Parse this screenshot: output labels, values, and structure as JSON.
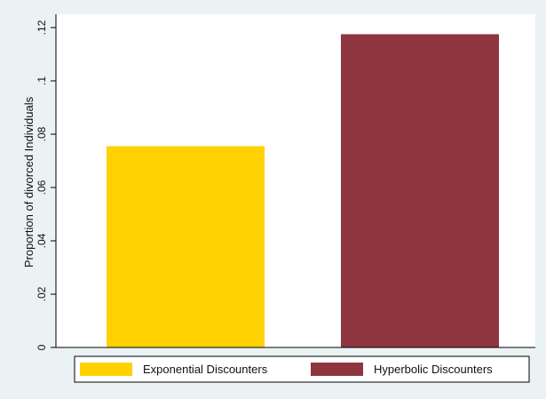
{
  "chart_data": {
    "type": "bar",
    "categories": [
      "Exponential Discounters",
      "Hyperbolic Discounters"
    ],
    "values": [
      0.0755,
      0.1175
    ],
    "colors": [
      "#FFD100",
      "#8F3540"
    ],
    "title": "",
    "xlabel": "",
    "ylabel": "Proportion of divorced Individuals",
    "ylim": [
      0,
      0.125
    ],
    "yticks": [
      0,
      0.02,
      0.04,
      0.06,
      0.08,
      0.1,
      0.12
    ],
    "ytick_labels": [
      "0",
      ".02",
      ".04",
      ".06",
      ".08",
      ".1",
      ".12"
    ],
    "grid": false,
    "legend_position": "bottom",
    "background_color": "#EAF2F3",
    "plot_background_color": "#FFFFFF"
  }
}
